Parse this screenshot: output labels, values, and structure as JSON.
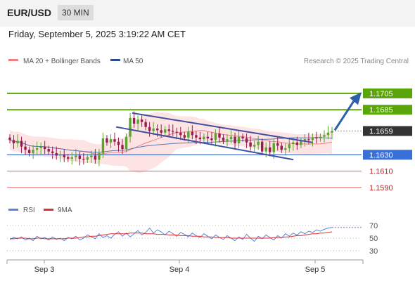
{
  "header": {
    "symbol": "EUR/USD",
    "timeframe": "30 MIN",
    "datetime": "Friday, September 5, 2025 3:19:22 AM CET"
  },
  "legend": {
    "ma20_label": "MA 20 + Bollinger Bands",
    "ma50_label": "MA 50",
    "credit": "Research © 2025 Trading Central"
  },
  "rsi_legend": {
    "rsi_label": "RSI",
    "ma_label": "9MA"
  },
  "colors": {
    "bull": "#5aa52a",
    "bear": "#9b1b4f",
    "resistance": "#5aa50a",
    "support": "#3b6fd8",
    "red_level": "#e06060",
    "channel": "#3d4f9e",
    "arrow": "#2c5fa8",
    "bollinger_fill": "#fde3e3",
    "ma20": "#f08080",
    "ma50": "#5a78b4",
    "rsi": "#5b85d6",
    "rsi_ma": "#e03030"
  },
  "chart_data": {
    "type": "candlestick",
    "x_ticks": [
      "Sep 3",
      "Sep 4",
      "Sep 5"
    ],
    "ylim": [
      1.1577,
      1.1735
    ],
    "current_price": "1.1659",
    "levels": [
      {
        "label": "1.1705",
        "value": 1.1705,
        "kind": "resistance"
      },
      {
        "label": "1.1685",
        "value": 1.1685,
        "kind": "resistance"
      },
      {
        "label": "1.1630",
        "value": 1.163,
        "kind": "support"
      },
      {
        "label": "1.1610",
        "value": 1.161,
        "kind": "minor"
      },
      {
        "label": "1.1590",
        "value": 1.159,
        "kind": "minor"
      }
    ],
    "closes": [
      1.1648,
      1.1644,
      1.1647,
      1.164,
      1.1636,
      1.1632,
      1.1636,
      1.1638,
      1.164,
      1.1637,
      1.1634,
      1.1632,
      1.1629,
      1.163,
      1.1627,
      1.1625,
      1.1627,
      1.1629,
      1.1625,
      1.1624,
      1.1627,
      1.1629,
      1.1624,
      1.1632,
      1.165,
      1.1645,
      1.1649,
      1.1646,
      1.1642,
      1.1637,
      1.1652,
      1.1675,
      1.1668,
      1.1673,
      1.167,
      1.1664,
      1.1659,
      1.1662,
      1.166,
      1.1657,
      1.1661,
      1.1659,
      1.1658,
      1.1657,
      1.1654,
      1.1651,
      1.1658,
      1.1654,
      1.1651,
      1.1649,
      1.1652,
      1.165,
      1.1648,
      1.1656,
      1.1651,
      1.1647,
      1.1649,
      1.1652,
      1.1644,
      1.1652,
      1.165,
      1.1645,
      1.164,
      1.1642,
      1.1646,
      1.1634,
      1.1639,
      1.1633,
      1.1644,
      1.1641,
      1.1636,
      1.1638,
      1.1643,
      1.1645,
      1.1642,
      1.1647,
      1.1649,
      1.1648,
      1.1651,
      1.165,
      1.1652,
      1.1654,
      1.1657,
      1.1659
    ],
    "rsi": {
      "levels": [
        70,
        50,
        30
      ],
      "ylim": [
        20,
        80
      ],
      "values": [
        48,
        51,
        49,
        52,
        47,
        50,
        46,
        53,
        49,
        51,
        47,
        52,
        48,
        50,
        46,
        51,
        49,
        53,
        47,
        50,
        55,
        52,
        49,
        57,
        51,
        54,
        50,
        56,
        60,
        53,
        58,
        52,
        57,
        62,
        55,
        59,
        66,
        58,
        63,
        60,
        55,
        61,
        57,
        53,
        59,
        56,
        52,
        58,
        54,
        51,
        57,
        53,
        49,
        55,
        51,
        48,
        54,
        50,
        46,
        52,
        48,
        56,
        50,
        45,
        53,
        49,
        55,
        51,
        47,
        54,
        50,
        57,
        53,
        58,
        55,
        60,
        57,
        61,
        59,
        63,
        61,
        64,
        66,
        67
      ],
      "ma": [
        49,
        49,
        50,
        50,
        50,
        49,
        49,
        50,
        50,
        49,
        49,
        49,
        49,
        49,
        49,
        50,
        50,
        50,
        51,
        52,
        52,
        53,
        53,
        54,
        55,
        56,
        57,
        57,
        57,
        57,
        57,
        58,
        58,
        58,
        58,
        57,
        57,
        57,
        56,
        56,
        56,
        55,
        55,
        55,
        54,
        54,
        54,
        53,
        53,
        53,
        52,
        52,
        52,
        51,
        51,
        51,
        51,
        50,
        50,
        50,
        50,
        50,
        50,
        50,
        50,
        50,
        50,
        50,
        51,
        51,
        51,
        52,
        52,
        53,
        54,
        54,
        55,
        56,
        57,
        57,
        58,
        58,
        59,
        60
      ]
    }
  }
}
